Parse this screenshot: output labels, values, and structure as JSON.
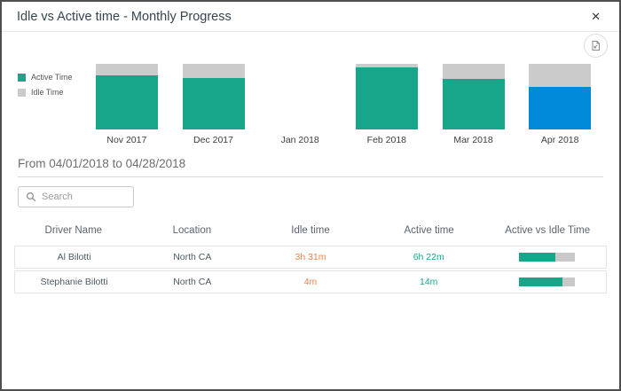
{
  "window": {
    "title": "Idle vs Active time - Monthly Progress",
    "close_glyph": "✕",
    "close_icon": "close-icon"
  },
  "export_button": {
    "icon": "export-report-icon"
  },
  "chart_data": {
    "type": "bar",
    "stacked": true,
    "categories": [
      "Nov 2017",
      "Dec 2017",
      "Jan 2018",
      "Feb 2018",
      "Mar 2018",
      "Apr 2018"
    ],
    "series": [
      {
        "name": "Active Time",
        "values": [
          82,
          78,
          0,
          94,
          77,
          65
        ],
        "color": "#17a68a"
      },
      {
        "name": "Idle Time",
        "values": [
          18,
          22,
          0,
          6,
          23,
          35
        ],
        "color": "#cbcbcb"
      }
    ],
    "selected_index": 5,
    "selected_color": "#0089d8",
    "ylim": [
      0,
      100
    ],
    "units": "percent of month bar height",
    "legend_position": "left",
    "grid": false
  },
  "period": {
    "label": "From 04/01/2018 to 04/28/2018"
  },
  "search": {
    "placeholder": "Search",
    "icon": "search-icon"
  },
  "table": {
    "columns": [
      "Driver Name",
      "Location",
      "Idle time",
      "Active time",
      "Active vs Idle Time"
    ],
    "rows": [
      {
        "driver": "Al Bilotti",
        "location": "North CA",
        "idle": "3h 31m",
        "active": "6h 22m",
        "active_pct": 65
      },
      {
        "driver": "Stephanie Bilotti",
        "location": "North CA",
        "idle": "4m",
        "active": "14m",
        "active_pct": 78
      }
    ]
  },
  "colors": {
    "active": "#17a68a",
    "idle": "#cbcbcb",
    "selected": "#0089d8",
    "idle_text": "#e8824f",
    "active_text": "#17a68a",
    "progress_track": "#c9c9c9"
  }
}
